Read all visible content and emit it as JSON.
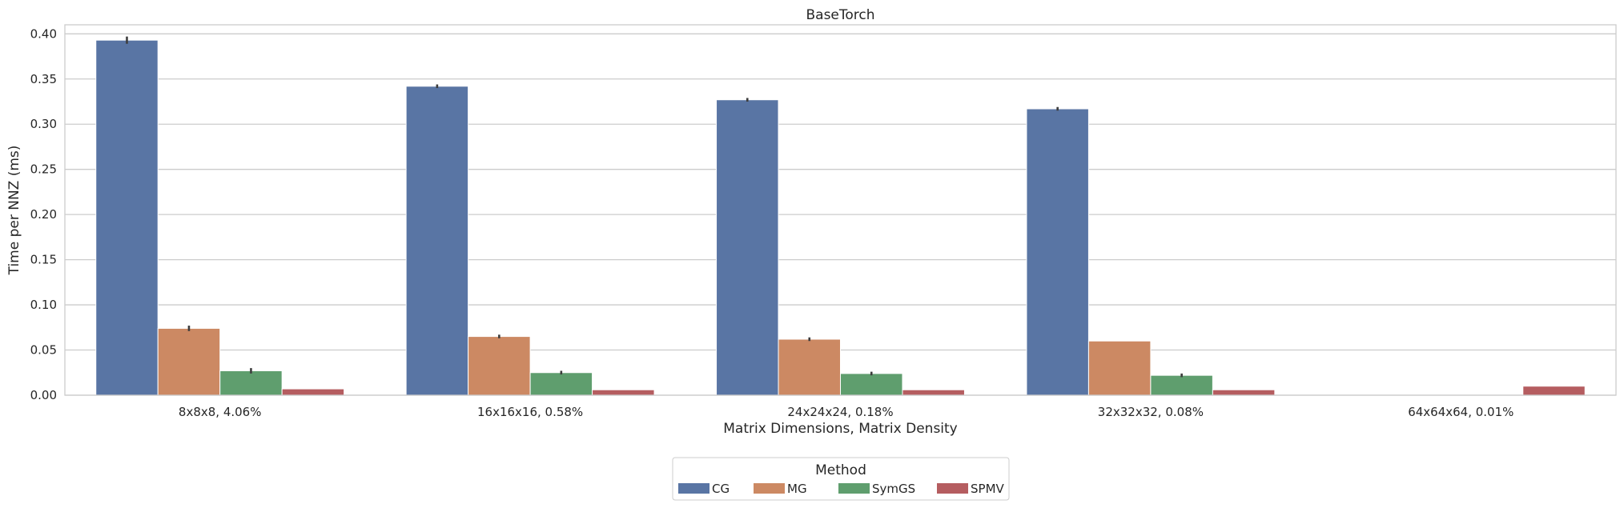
{
  "chart_data": {
    "type": "bar",
    "title": "BaseTorch",
    "xlabel": "Matrix Dimensions, Matrix Density",
    "ylabel": "Time per NNZ (ms)",
    "ylim": [
      0,
      0.41
    ],
    "yticks": [
      "0.00",
      "0.05",
      "0.10",
      "0.15",
      "0.20",
      "0.25",
      "0.30",
      "0.35",
      "0.40"
    ],
    "grid": true,
    "legend_position": "bottom-center",
    "legend_title": "Method",
    "categories": [
      "8x8x8, 4.06%",
      "16x16x16, 0.58%",
      "24x24x24, 0.18%",
      "32x32x32, 0.08%",
      "64x64x64, 0.01%"
    ],
    "series": [
      {
        "name": "CG",
        "color": "#5975a4",
        "values": [
          0.393,
          0.342,
          0.327,
          0.317,
          null
        ]
      },
      {
        "name": "MG",
        "color": "#cc8963",
        "values": [
          0.074,
          0.065,
          0.062,
          0.06,
          null
        ]
      },
      {
        "name": "SymGS",
        "color": "#5f9e6e",
        "values": [
          0.027,
          0.025,
          0.024,
          0.022,
          null
        ]
      },
      {
        "name": "SPMV",
        "color": "#b55d60",
        "values": [
          0.007,
          0.006,
          0.006,
          0.006,
          0.01
        ]
      }
    ],
    "error_bars": [
      [
        0.004,
        0.002,
        0.002,
        0.002,
        null
      ],
      [
        0.003,
        0.002,
        0.002,
        0.0,
        null
      ],
      [
        0.003,
        0.002,
        0.002,
        0.002,
        null
      ],
      [
        0.0,
        0.0,
        0.0,
        0.0,
        0.0
      ]
    ]
  }
}
